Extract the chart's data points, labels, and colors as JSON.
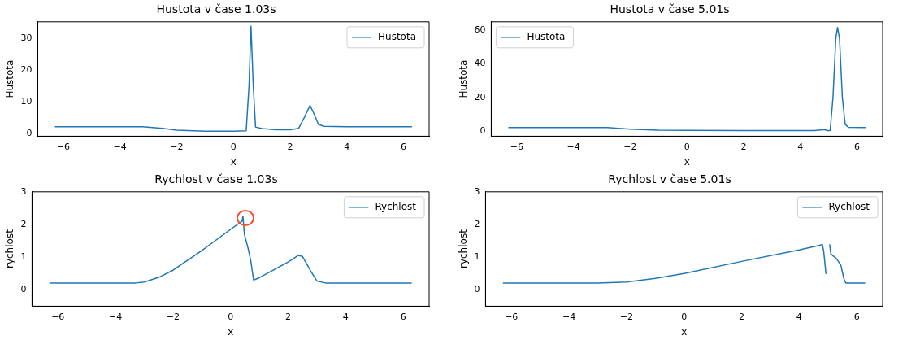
{
  "chart_data": [
    {
      "type": "line",
      "title": "Hustota v čase 1.03s",
      "xlabel": "x",
      "ylabel": "Hustota",
      "xlim": [
        -6.9,
        6.9
      ],
      "xticks": [
        -6,
        -4,
        -2,
        0,
        2,
        4,
        6
      ],
      "ylim": [
        -0.9,
        35.2
      ],
      "yticks": [
        0,
        10,
        20,
        30
      ],
      "grid": false,
      "legend": "top right",
      "series": [
        {
          "name": "Hustota",
          "color": "#1f77b4",
          "x": [
            -6.28,
            -3.2,
            -2.5,
            -2,
            -1,
            0,
            0.45,
            0.55,
            0.62,
            0.7,
            0.78,
            1,
            1.5,
            2,
            2.3,
            2.5,
            2.7,
            2.85,
            3.0,
            3.2,
            4,
            6.28
          ],
          "values": [
            2.1,
            2.1,
            1.6,
            1.0,
            0.7,
            0.7,
            0.8,
            15,
            33.8,
            15,
            2.0,
            1.5,
            1.1,
            1.1,
            1.6,
            5,
            8.8,
            6,
            2.8,
            2.2,
            2.1,
            2.1
          ]
        }
      ]
    },
    {
      "type": "line",
      "title": "Hustota v čase 5.01s",
      "xlabel": "x",
      "ylabel": "Hustota",
      "xlim": [
        -6.9,
        6.9
      ],
      "xticks": [
        -6,
        -4,
        -2,
        0,
        2,
        4,
        6
      ],
      "ylim": [
        -3,
        64.8
      ],
      "yticks": [
        0,
        20,
        40,
        60
      ],
      "grid": false,
      "legend": "top left",
      "series": [
        {
          "name": "Hustota",
          "color": "#1f77b4",
          "x": [
            -6.28,
            -2.8,
            -2,
            -1,
            0,
            2,
            4.5,
            4.85,
            4.95,
            5.05,
            5.15,
            5.25,
            5.31,
            5.38,
            5.48,
            5.58,
            5.7,
            6.28
          ],
          "values": [
            2.1,
            2.1,
            1.2,
            0.6,
            0.4,
            0.3,
            0.3,
            0.9,
            0.3,
            0.3,
            20,
            55,
            61.5,
            55,
            20,
            4,
            2.2,
            2.1
          ]
        }
      ]
    },
    {
      "type": "line",
      "title": "Rychlost v čase 1.03s",
      "xlabel": "x",
      "ylabel": "rychlost",
      "xlim": [
        -6.9,
        6.9
      ],
      "xticks": [
        -6,
        -4,
        -2,
        0,
        2,
        4,
        6
      ],
      "ylim": [
        -0.5,
        3
      ],
      "yticks": [
        0,
        1,
        2,
        3
      ],
      "grid": false,
      "legend": "top right",
      "series": [
        {
          "name": "Rychlost",
          "color": "#1f77b4",
          "x": [
            -6.28,
            -3.3,
            -3,
            -2.5,
            -2,
            -1,
            0,
            0.4,
            0.43,
            0.48,
            0.6,
            0.7,
            0.8,
            1,
            2,
            2.35,
            2.5,
            2.8,
            3.0,
            3.3,
            6.28
          ],
          "values": [
            0.21,
            0.21,
            0.24,
            0.38,
            0.6,
            1.2,
            1.85,
            2.1,
            2.25,
            1.7,
            1.3,
            0.9,
            0.3,
            0.37,
            0.85,
            1.05,
            1.02,
            0.55,
            0.27,
            0.21,
            0.21
          ]
        }
      ]
    },
    {
      "type": "line",
      "title": "Rychlost v čase 5.01s",
      "xlabel": "x",
      "ylabel": "rychlost",
      "xlim": [
        -6.9,
        6.9
      ],
      "xticks": [
        -6,
        -4,
        -2,
        0,
        2,
        4,
        6
      ],
      "ylim": [
        -0.5,
        3
      ],
      "yticks": [
        0,
        1,
        2,
        3
      ],
      "grid": false,
      "legend": "top right",
      "series": [
        {
          "name": "Rychlost",
          "color": "#1f77b4",
          "x": [
            -6.28,
            -3,
            -2,
            -1,
            0,
            2,
            4,
            4.75,
            4.8,
            4.85,
            4.93,
            4.97,
            5.03,
            5.06,
            5.1,
            5.3,
            5.45,
            5.55,
            5.62,
            6.28
          ],
          "values": [
            0.21,
            0.21,
            0.24,
            0.35,
            0.5,
            0.87,
            1.22,
            1.37,
            1.4,
            1.2,
            0.5,
            null,
            null,
            1.38,
            1.1,
            0.95,
            0.75,
            0.35,
            0.21,
            0.21
          ]
        }
      ]
    }
  ]
}
